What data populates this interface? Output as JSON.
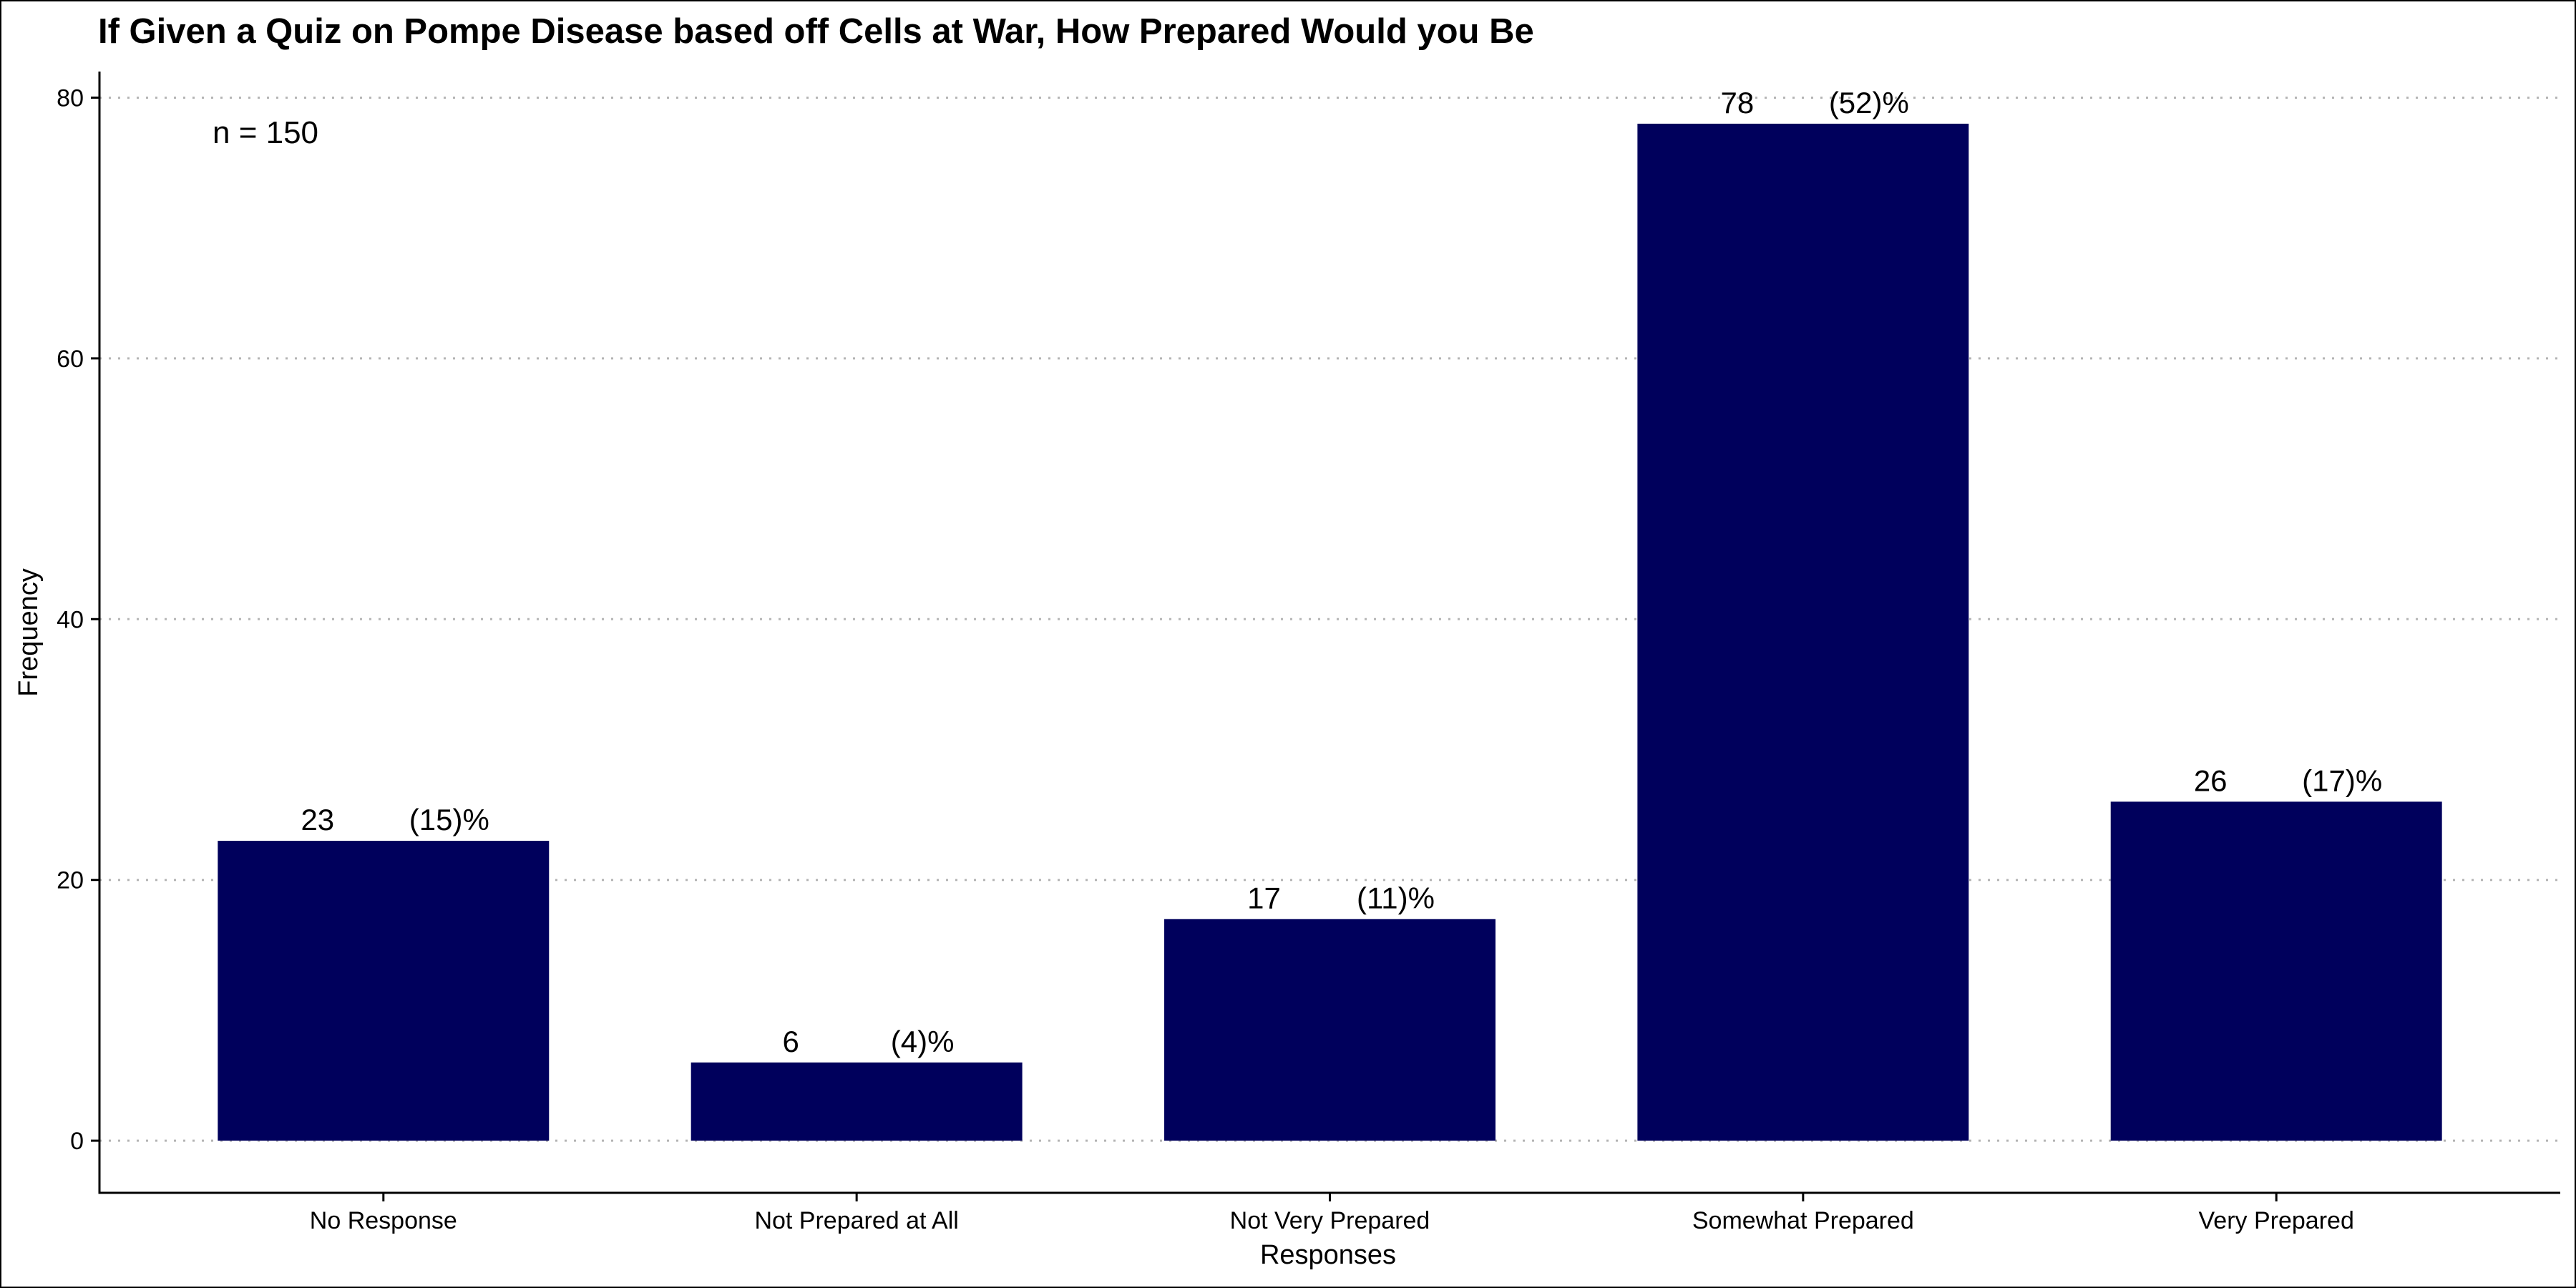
{
  "chart_data": {
    "type": "bar",
    "title": "If Given a Quiz on Pompe Disease based off Cells at War, How Prepared Would you Be",
    "xlabel": "Responses",
    "ylabel": "Frequency",
    "annotation": "n = 150",
    "categories": [
      "No Response",
      "Not Prepared at All",
      "Not Very Prepared",
      "Somewhat Prepared",
      "Very Prepared"
    ],
    "values": [
      23,
      6,
      17,
      78,
      26
    ],
    "value_labels": [
      "23",
      "6",
      "17",
      "78",
      "26"
    ],
    "percent_labels": [
      "(15)%",
      "(4)%",
      "(11)%",
      "(52)%",
      "(17)%"
    ],
    "ylim": [
      -4,
      82
    ],
    "yticks": [
      0,
      20,
      40,
      60,
      80
    ],
    "grid": "horizontal dotted",
    "colors": {
      "bar": "#00005C",
      "grid": "#b5b5b5",
      "axis": "#000000"
    }
  }
}
